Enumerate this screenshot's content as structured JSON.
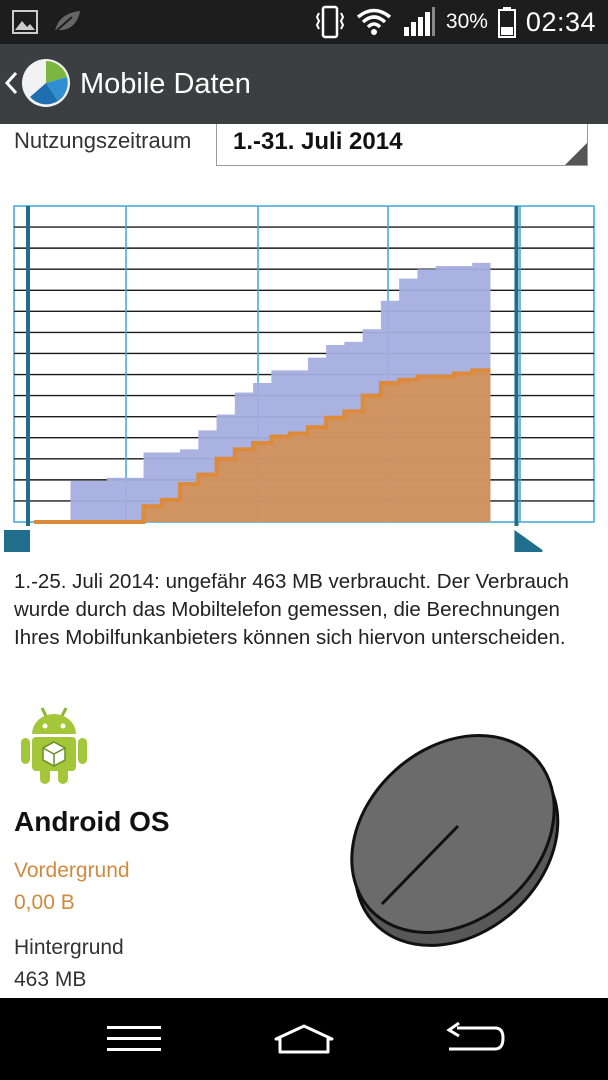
{
  "status_bar": {
    "battery_percent": "30%",
    "time": "02:34"
  },
  "action_bar": {
    "title": "Mobile Daten"
  },
  "usage_period": {
    "label": "Nutzungszeitraum",
    "selected": "1.-31. Juli 2014"
  },
  "chart_data": {
    "type": "area",
    "title": "",
    "xlabel": "",
    "ylabel": "",
    "series": [
      {
        "color": "#a4aede",
        "values": [
          0,
          0,
          0.13,
          0.13,
          0.14,
          0.14,
          0.22,
          0.22,
          0.23,
          0.29,
          0.34,
          0.41,
          0.44,
          0.48,
          0.48,
          0.52,
          0.56,
          0.57,
          0.61,
          0.7,
          0.77,
          0.8,
          0.81,
          0.81,
          0.82
        ]
      },
      {
        "color": "#dd8a3a",
        "values": [
          0,
          0,
          0,
          0,
          0,
          0,
          0.05,
          0.07,
          0.12,
          0.15,
          0.2,
          0.23,
          0.25,
          0.27,
          0.28,
          0.3,
          0.33,
          0.35,
          0.4,
          0.44,
          0.45,
          0.46,
          0.46,
          0.47,
          0.48
        ]
      }
    ],
    "handles": {
      "start_day": 1,
      "end_day": 25,
      "days_in_period": 31
    },
    "grid": true
  },
  "summary": "1.-25. Juli 2014: ungefähr 463 MB verbraucht. Der Verbrauch wurde durch das Mobiltelefon gemessen, die Berechnungen Ihres Mobilfunkanbieters können sich hiervon unterscheiden.",
  "app": {
    "name": "Android OS",
    "foreground_label": "Vordergrund",
    "foreground_value": "0,00 B",
    "background_label": "Hintergrund",
    "background_value": "463 MB"
  },
  "colors": {
    "accent_orange": "#cf8a3d",
    "handle_blue": "#1f6e8c",
    "grid_blue": "#3fa7d6",
    "pie_fill": "#6b6b6b"
  }
}
